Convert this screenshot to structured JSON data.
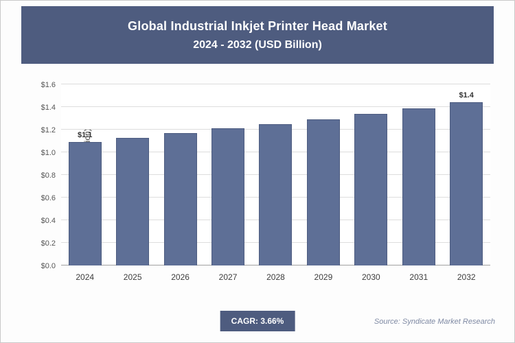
{
  "header": {
    "title_line1": "Global Industrial Inkjet Printer Head Market",
    "title_line2": "2024 - 2032 (USD Billion)"
  },
  "colors": {
    "header_bg": "#4e5c7f",
    "bar_fill": "#5e6f96",
    "bar_border": "#4d5c80",
    "gridline": "#dddddd",
    "badge_bg": "#4e5c7f"
  },
  "chart_data": {
    "type": "bar",
    "title": "Global Industrial Inkjet Printer Head Market 2024 - 2032 (USD Billion)",
    "xlabel": "",
    "ylabel": "Market Size (USD Billion)",
    "ylim": [
      0,
      1.6
    ],
    "grid": true,
    "legend": false,
    "categories": [
      "2024",
      "2025",
      "2026",
      "2027",
      "2028",
      "2029",
      "2030",
      "2031",
      "2032"
    ],
    "values": [
      1.09,
      1.13,
      1.17,
      1.21,
      1.25,
      1.29,
      1.34,
      1.39,
      1.44
    ],
    "bar_value_labels": [
      "$1.1",
      "",
      "",
      "",
      "",
      "",
      "",
      "",
      "$1.4"
    ],
    "yticks": [
      {
        "value": 0.0,
        "label": "$0.0"
      },
      {
        "value": 0.2,
        "label": "$0.2"
      },
      {
        "value": 0.4,
        "label": "$0.4"
      },
      {
        "value": 0.6,
        "label": "$0.6"
      },
      {
        "value": 0.8,
        "label": "$0.8"
      },
      {
        "value": 1.0,
        "label": "$1.0"
      },
      {
        "value": 1.2,
        "label": "$1.2"
      },
      {
        "value": 1.4,
        "label": "$1.4"
      },
      {
        "value": 1.6,
        "label": "$1.6"
      }
    ]
  },
  "footer": {
    "cagr_label": "CAGR: 3.66%",
    "source": "Source: Syndicate Market Research"
  }
}
